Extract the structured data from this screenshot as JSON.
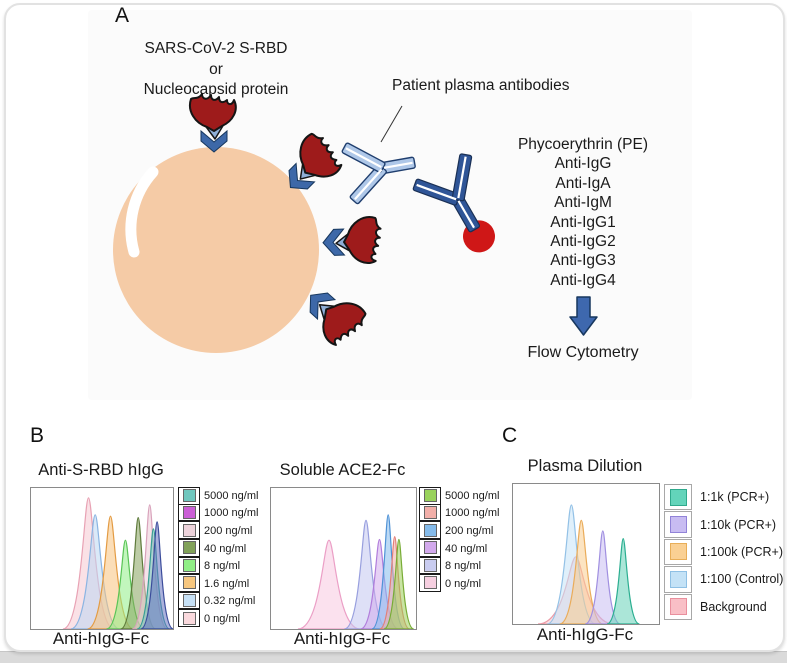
{
  "panel_a": {
    "label": "A",
    "caption_lines": [
      "SARS-CoV-2 S-RBD",
      "or",
      "Nucleocapsid protein"
    ],
    "plasma_label": "Patient plasma antibodies",
    "detection_list": [
      "Phycoerythrin (PE)",
      "Anti-IgG",
      "Anti-IgA",
      "Anti-IgM",
      "Anti-IgG1",
      "Anti-IgG2",
      "Anti-IgG3",
      "Anti-IgG4"
    ],
    "flow_label": "Flow Cytometry",
    "colors": {
      "bead": "#F5CBA6",
      "antigen_blob": "#9E1B1B",
      "connector_dark": "#3D68A8",
      "connector_light": "#8FAFD7",
      "plasma_antibody": "#AEC7E8",
      "plasma_antibody_stroke": "#1F3E6E",
      "detection_antibody": "#2F5597",
      "detection_antibody_stroke": "#1A3055",
      "pe_ball": "#CF1717",
      "arrow": "#3E68AE"
    }
  },
  "panel_b": {
    "label": "B"
  },
  "panel_c": {
    "label": "C"
  },
  "chart_data": [
    {
      "type": "histogram-overlay",
      "panel": "B",
      "title": "Anti-S-RBD hIgG",
      "xlabel": "Anti-hIgG-Fc",
      "no_ticks": true,
      "legend_position": "right",
      "legend_style": "b",
      "legend": [
        {
          "label": "5000 ng/ml",
          "color": "#6FC7BE"
        },
        {
          "label": "1000 ng/ml",
          "color": "#CB5FD6"
        },
        {
          "label": "200 ng/ml",
          "color": "#EDD3DB"
        },
        {
          "label": "40 ng/ml",
          "color": "#81A159"
        },
        {
          "label": "8 ng/ml",
          "color": "#90EE86"
        },
        {
          "label": "1.6 ng/ml",
          "color": "#F7C77F"
        },
        {
          "label": "0.32 ng/ml",
          "color": "#C6E0F5"
        },
        {
          "label": "0 ng/ml",
          "color": "#FAD9DD"
        }
      ],
      "peaks": [
        {
          "series": "0 ng/ml",
          "x": 0.405,
          "height": 0.93,
          "width": 9.5,
          "fill": "#F6C8D2",
          "stroke": "#E8A2B4"
        },
        {
          "series": "0.32 ng/ml",
          "x": 0.452,
          "height": 0.81,
          "width": 9.0,
          "fill": "#BCD7F2",
          "stroke": "#8BB4E2"
        },
        {
          "series": "1.6 ng/ml",
          "x": 0.56,
          "height": 0.8,
          "width": 8.5,
          "fill": "#F7C27E",
          "stroke": "#E39B43"
        },
        {
          "series": "8 ng/ml",
          "x": 0.665,
          "height": 0.63,
          "width": 7.0,
          "fill": "#90EE86",
          "stroke": "#59C456"
        },
        {
          "series": "40 ng/ml",
          "x": 0.755,
          "height": 0.79,
          "width": 6.5,
          "fill": "#87A35D",
          "stroke": "#5E7A3B"
        },
        {
          "series": "200 ng/ml",
          "x": 0.836,
          "height": 0.88,
          "width": 6.5,
          "fill": "#ECCAD7",
          "stroke": "#D8A2BB"
        },
        {
          "series": "5000 ng/ml",
          "x": 0.862,
          "height": 0.71,
          "width": 6.0,
          "fill": "#6FC7BE",
          "stroke": "#37A094"
        },
        {
          "series": "1000 ng/ml",
          "x": 0.888,
          "height": 0.76,
          "width": 6.0,
          "fill": "#6673C0",
          "stroke": "#3B4C9B"
        }
      ]
    },
    {
      "type": "histogram-overlay",
      "panel": "B",
      "title": "Soluble ACE2-Fc",
      "xlabel": "Anti-hIgG-Fc",
      "no_ticks": true,
      "legend_position": "right",
      "legend_style": "b",
      "legend": [
        {
          "label": "5000 ng/ml",
          "color": "#99D25C"
        },
        {
          "label": "1000 ng/ml",
          "color": "#F2AFA9"
        },
        {
          "label": "200 ng/ml",
          "color": "#85BBEA"
        },
        {
          "label": "40 ng/ml",
          "color": "#D2A9EC"
        },
        {
          "label": "8 ng/ml",
          "color": "#C9CCF0"
        },
        {
          "label": "0 ng/ml",
          "color": "#F6CFE0"
        }
      ],
      "peaks": [
        {
          "series": "0 ng/ml",
          "x": 0.4,
          "height": 0.63,
          "width": 11.5,
          "fill": "#F7C9E0",
          "stroke": "#EB9FC6"
        },
        {
          "series": "8 ng/ml",
          "x": 0.655,
          "height": 0.77,
          "width": 8.0,
          "fill": "#C3C6F1",
          "stroke": "#989FDE"
        },
        {
          "series": "40 ng/ml",
          "x": 0.748,
          "height": 0.635,
          "width": 7.0,
          "fill": "#D2ABEC",
          "stroke": "#B17DDB"
        },
        {
          "series": "200 ng/ml",
          "x": 0.808,
          "height": 0.81,
          "width": 6.0,
          "fill": "#85BCEC",
          "stroke": "#4F92D6"
        },
        {
          "series": "1000 ng/ml",
          "x": 0.853,
          "height": 0.655,
          "width": 5.5,
          "fill": "#F3ACA6",
          "stroke": "#E27F78"
        },
        {
          "series": "5000 ng/ml",
          "x": 0.882,
          "height": 0.635,
          "width": 5.5,
          "fill": "#9CCE58",
          "stroke": "#78AC36"
        }
      ]
    },
    {
      "type": "histogram-overlay",
      "panel": "C",
      "title": "Plasma Dilution",
      "xlabel": "Anti-hIgG-Fc",
      "no_ticks": true,
      "legend_position": "right",
      "legend_style": "c",
      "legend": [
        {
          "label": "1:1k (PCR+)",
          "color": "#63D4BA",
          "border": "#2FA98C"
        },
        {
          "label": "1:10k (PCR+)",
          "color": "#C8BCF2",
          "border": "#9183D8"
        },
        {
          "label": "1:100k (PCR+)",
          "color": "#FAD093",
          "border": "#E8AE58"
        },
        {
          "label": "1:100 (Control)",
          "color": "#C4E2F6",
          "border": "#8FC0E4"
        },
        {
          "label": "Background",
          "color": "#F9BFC6",
          "border": "#E98F9D"
        }
      ],
      "peaks": [
        {
          "series": "Background",
          "x": 0.43,
          "height": 0.48,
          "width": 14.0,
          "fill": "#F8C2CA",
          "stroke": "#EC9AA6"
        },
        {
          "series": "1:100 (Control)",
          "x": 0.4,
          "height": 0.85,
          "width": 9.0,
          "fill": "#C7E3F7",
          "stroke": "#93C1E6"
        },
        {
          "series": "1:100k (PCR+)",
          "x": 0.468,
          "height": 0.74,
          "width": 8.0,
          "fill": "#F9CE90",
          "stroke": "#EAAC5A"
        },
        {
          "series": "1:10k (PCR+)",
          "x": 0.615,
          "height": 0.665,
          "width": 6.5,
          "fill": "#C8BDF2",
          "stroke": "#A08FE0"
        },
        {
          "series": "1:1k (PCR+)",
          "x": 0.755,
          "height": 0.61,
          "width": 6.0,
          "fill": "#66D2B8",
          "stroke": "#2BAE90"
        }
      ]
    }
  ]
}
